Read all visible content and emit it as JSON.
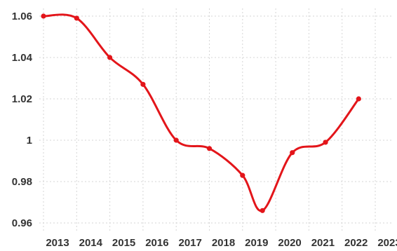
{
  "chart_data": {
    "type": "line",
    "title": "",
    "xlabel": "",
    "ylabel": "",
    "x": [
      "2013",
      "2014",
      "2015",
      "2016",
      "2017",
      "2018",
      "2019",
      "2020",
      "2021",
      "2022",
      "2023"
    ],
    "x_tick_labels": [
      "2013",
      "2014",
      "2015",
      "2016",
      "2017",
      "2018",
      "2019",
      "2020",
      "2021",
      "2022",
      "2023"
    ],
    "y_tick_labels": [
      "1.06",
      "1.04",
      "1.02",
      "1",
      "0.98",
      "0.96"
    ],
    "y_ticks": [
      1.06,
      1.04,
      1.02,
      1.0,
      0.98,
      0.96
    ],
    "ylim": [
      0.955,
      1.065
    ],
    "series": [
      {
        "x": [
          2013.0,
          2014.0,
          2015.0,
          2016.0,
          2017.0,
          2018.0,
          2019.0,
          2019.6,
          2020.5,
          2021.5,
          2022.5
        ],
        "values": [
          1.06,
          1.059,
          1.04,
          1.027,
          1.0,
          0.996,
          0.983,
          0.966,
          0.994,
          0.999,
          1.02
        ],
        "color": "#e3151a"
      }
    ],
    "grid": true,
    "legend": "none"
  }
}
